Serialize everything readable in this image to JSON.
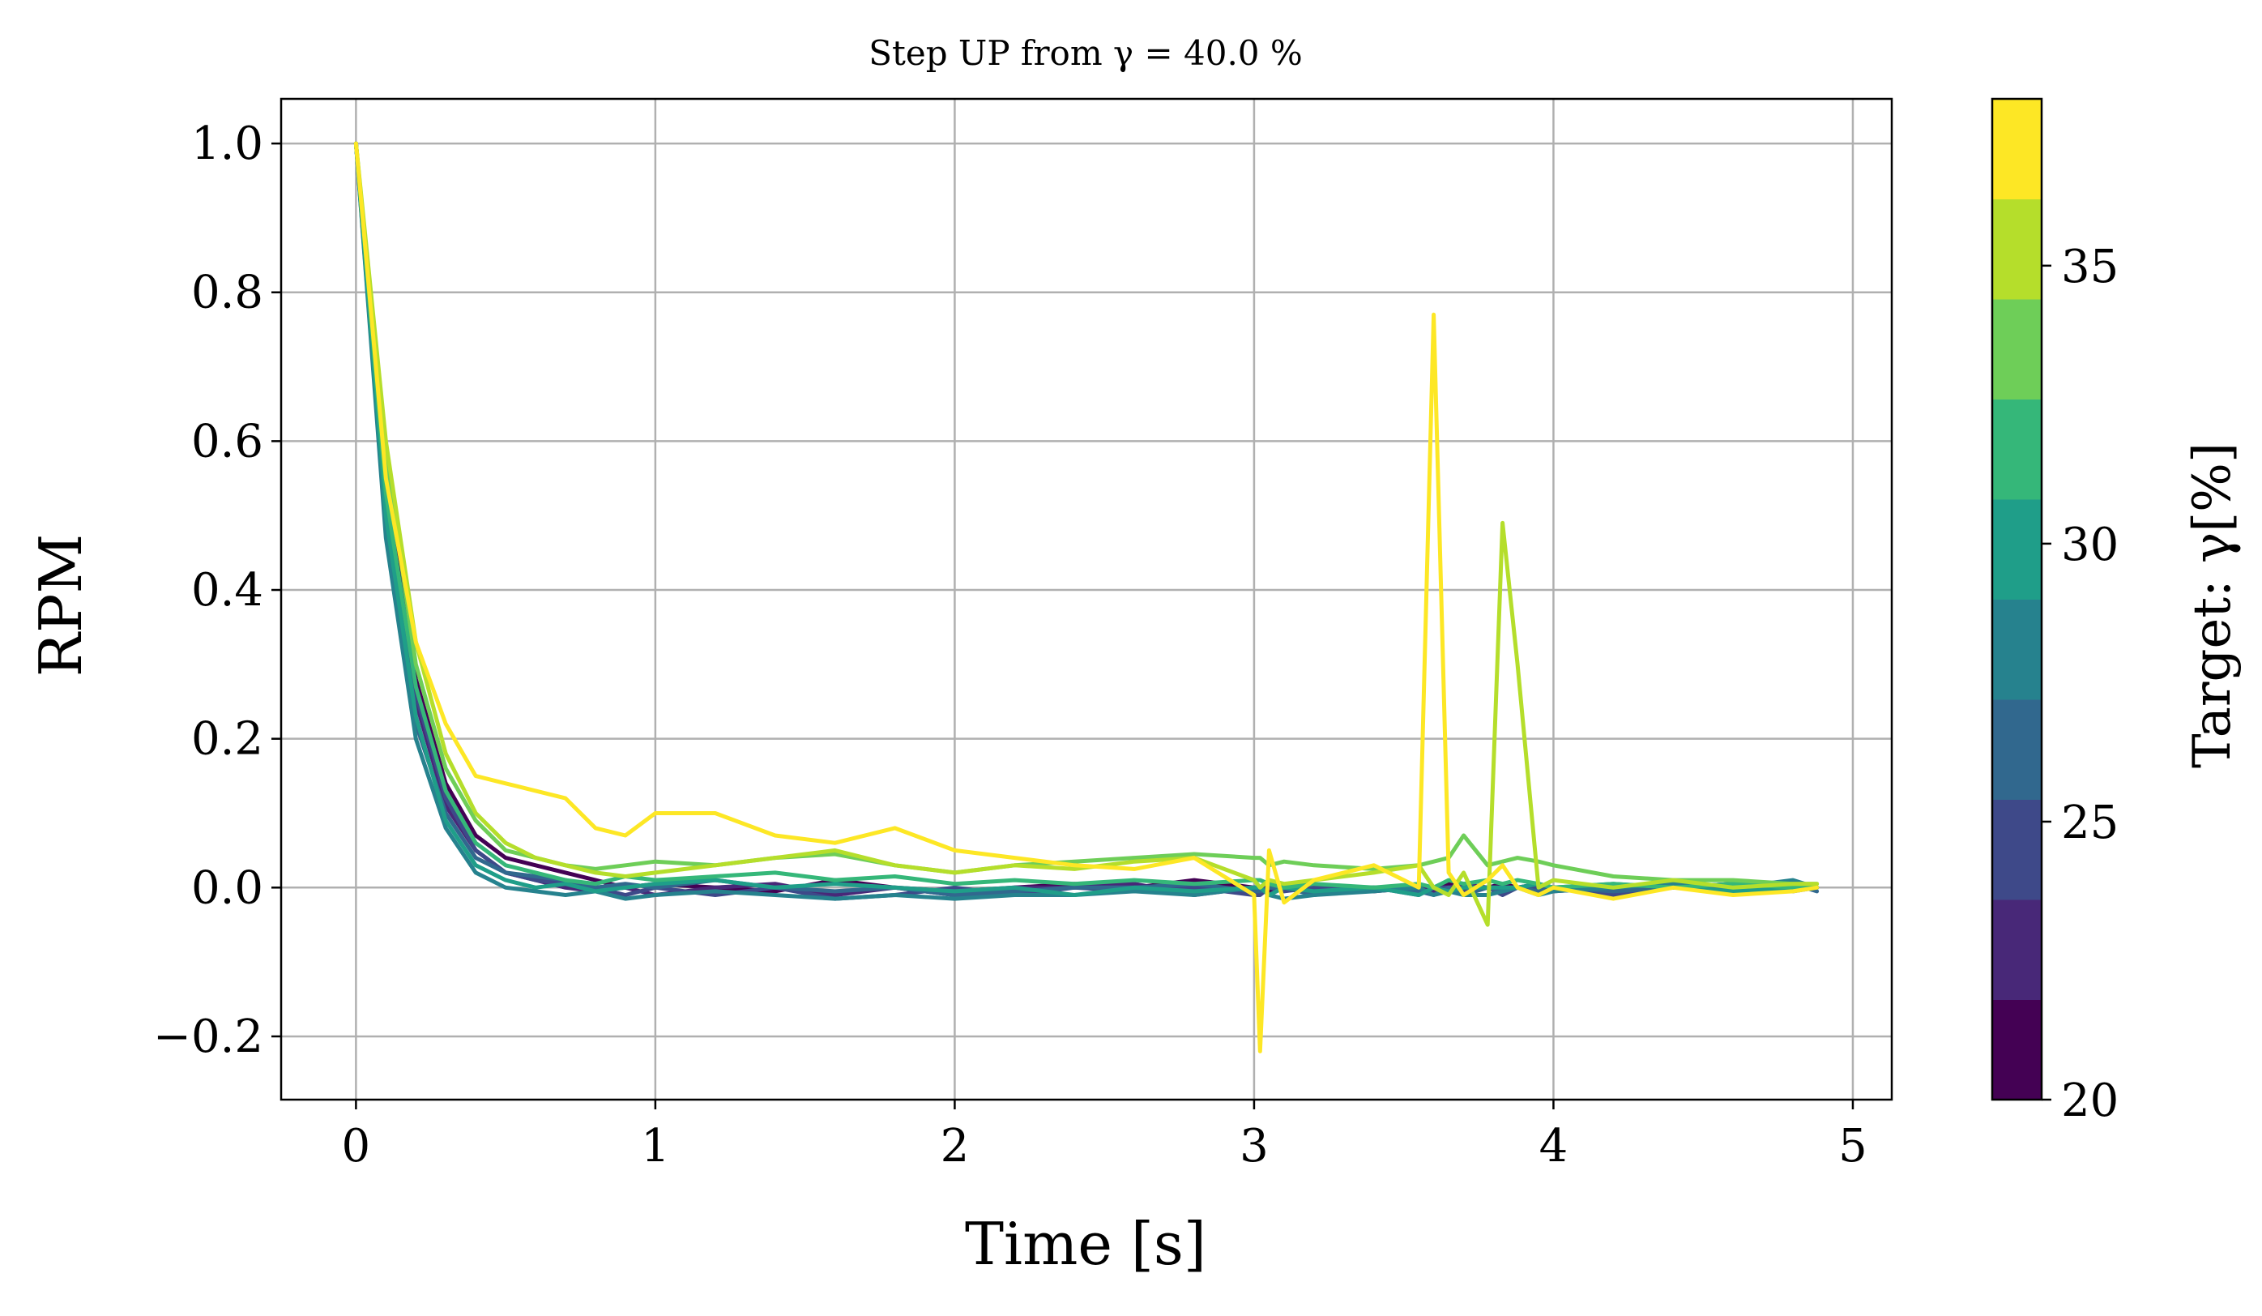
{
  "chart_data": {
    "type": "line",
    "title": "Step UP from γ = 40.0 %",
    "xlabel": "Time [s]",
    "ylabel": "RPM",
    "xlim": [
      -0.25,
      5.13
    ],
    "ylim": [
      -0.285,
      1.06
    ],
    "xticks": [
      0,
      1,
      2,
      3,
      4,
      5
    ],
    "xtick_labels": [
      "0",
      "1",
      "2",
      "3",
      "4",
      "5"
    ],
    "yticks": [
      -0.2,
      0.0,
      0.2,
      0.4,
      0.6,
      0.8,
      1.0
    ],
    "ytick_labels": [
      "−0.2",
      "0.0",
      "0.2",
      "0.4",
      "0.6",
      "0.8",
      "1.0"
    ],
    "grid": true,
    "colorbar": {
      "label": "Target: γ[%]",
      "range": [
        20,
        38
      ],
      "ticks": [
        20,
        25,
        30,
        35
      ],
      "tick_labels": [
        "20",
        "25",
        "30",
        "35"
      ],
      "colors": [
        "#440154",
        "#482878",
        "#3e4989",
        "#31688e",
        "#26828e",
        "#1f9e89",
        "#35b779",
        "#6ece58",
        "#b5de2b",
        "#fde725"
      ]
    },
    "x": [
      0.0,
      0.1,
      0.2,
      0.3,
      0.4,
      0.5,
      0.6,
      0.7,
      0.8,
      0.9,
      1.0,
      1.2,
      1.4,
      1.6,
      1.8,
      2.0,
      2.2,
      2.4,
      2.6,
      2.8,
      3.0,
      3.02,
      3.05,
      3.1,
      3.2,
      3.4,
      3.55,
      3.6,
      3.65,
      3.7,
      3.78,
      3.83,
      3.88,
      3.95,
      4.0,
      4.2,
      4.4,
      4.6,
      4.8,
      4.88
    ],
    "series": [
      {
        "color": "#440154",
        "values": [
          1.0,
          0.55,
          0.28,
          0.14,
          0.07,
          0.04,
          0.03,
          0.02,
          0.01,
          0.0,
          0.005,
          0.0,
          -0.005,
          0.01,
          0.0,
          -0.01,
          0.0,
          0.005,
          0.0,
          0.01,
          0.0,
          0.0,
          -0.005,
          0.0,
          0.0,
          -0.005,
          0.0,
          0.0,
          0.005,
          0.0,
          0.0,
          0.005,
          0.0,
          0.005,
          0.0,
          0.0,
          0.0,
          0.005,
          0.0,
          0.0
        ]
      },
      {
        "color": "#482878",
        "values": [
          1.0,
          0.5,
          0.25,
          0.11,
          0.05,
          0.02,
          0.01,
          0.0,
          -0.005,
          0.0,
          -0.01,
          0.0,
          0.005,
          -0.01,
          0.0,
          -0.005,
          0.0,
          0.0,
          0.005,
          -0.01,
          0.0,
          0.0,
          0.005,
          0.0,
          -0.005,
          0.0,
          0.0,
          -0.005,
          0.0,
          0.005,
          0.0,
          0.0,
          0.0,
          0.0,
          -0.005,
          0.0,
          0.005,
          0.0,
          0.0,
          0.0
        ]
      },
      {
        "color": "#3e4989",
        "values": [
          1.0,
          0.52,
          0.26,
          0.12,
          0.05,
          0.02,
          0.01,
          0.005,
          0.0,
          -0.01,
          0.0,
          -0.01,
          0.0,
          -0.015,
          -0.01,
          0.0,
          -0.01,
          0.0,
          -0.005,
          0.0,
          -0.01,
          -0.01,
          0.0,
          -0.005,
          0.0,
          0.0,
          -0.01,
          0.0,
          0.0,
          -0.005,
          0.0,
          -0.01,
          0.0,
          0.0,
          0.0,
          -0.01,
          0.0,
          0.005,
          -0.005,
          0.0
        ]
      },
      {
        "color": "#31688e",
        "values": [
          1.0,
          0.48,
          0.22,
          0.1,
          0.04,
          0.02,
          0.015,
          0.01,
          0.0,
          0.005,
          0.0,
          0.01,
          0.0,
          -0.005,
          0.0,
          -0.01,
          -0.005,
          0.0,
          0.0,
          0.005,
          -0.005,
          -0.005,
          0.0,
          0.0,
          -0.01,
          0.0,
          -0.005,
          -0.01,
          0.0,
          -0.01,
          0.0,
          -0.005,
          0.0,
          -0.005,
          0.0,
          -0.005,
          0.0,
          0.0,
          0.005,
          -0.005
        ]
      },
      {
        "color": "#26828e",
        "values": [
          1.0,
          0.47,
          0.2,
          0.08,
          0.02,
          0.0,
          -0.005,
          -0.01,
          -0.005,
          -0.015,
          -0.01,
          -0.005,
          -0.01,
          -0.015,
          -0.01,
          -0.015,
          -0.01,
          -0.01,
          -0.005,
          -0.01,
          0.0,
          0.0,
          -0.01,
          -0.015,
          -0.01,
          -0.005,
          0.0,
          -0.01,
          -0.005,
          -0.01,
          -0.01,
          -0.005,
          0.0,
          -0.01,
          -0.005,
          0.0,
          0.005,
          0.0,
          0.01,
          0.0
        ]
      },
      {
        "color": "#1f9e89",
        "values": [
          1.0,
          0.5,
          0.23,
          0.09,
          0.03,
          0.01,
          0.0,
          0.005,
          -0.005,
          0.0,
          0.005,
          0.01,
          0.0,
          0.005,
          0.0,
          -0.005,
          0.0,
          -0.01,
          0.0,
          -0.005,
          0.0,
          0.0,
          -0.01,
          0.0,
          -0.005,
          0.0,
          -0.01,
          0.0,
          -0.005,
          0.0,
          0.0,
          0.0,
          0.0,
          0.005,
          0.0,
          0.005,
          0.0,
          -0.005,
          0.0,
          0.0
        ]
      },
      {
        "color": "#35b779",
        "values": [
          1.0,
          0.53,
          0.27,
          0.13,
          0.06,
          0.03,
          0.02,
          0.01,
          0.005,
          0.015,
          0.01,
          0.015,
          0.02,
          0.01,
          0.015,
          0.005,
          0.01,
          0.005,
          0.01,
          0.005,
          0.01,
          0.01,
          0.005,
          0.0,
          0.005,
          0.0,
          0.005,
          0.0,
          0.01,
          0.005,
          0.01,
          0.005,
          0.01,
          0.005,
          0.0,
          0.005,
          0.0,
          0.005,
          0.0,
          0.0
        ]
      },
      {
        "color": "#6ece58",
        "values": [
          1.0,
          0.58,
          0.3,
          0.16,
          0.09,
          0.05,
          0.04,
          0.03,
          0.025,
          0.03,
          0.035,
          0.03,
          0.04,
          0.045,
          0.03,
          0.02,
          0.03,
          0.035,
          0.04,
          0.045,
          0.04,
          0.04,
          0.03,
          0.035,
          0.03,
          0.025,
          0.03,
          0.035,
          0.04,
          0.07,
          0.03,
          0.035,
          0.04,
          0.035,
          0.03,
          0.015,
          0.01,
          0.01,
          0.005,
          0.005
        ]
      },
      {
        "color": "#b5de2b",
        "values": [
          1.0,
          0.6,
          0.33,
          0.18,
          0.1,
          0.06,
          0.04,
          0.03,
          0.02,
          0.015,
          0.02,
          0.03,
          0.04,
          0.05,
          0.03,
          0.02,
          0.03,
          0.025,
          0.035,
          0.04,
          0.01,
          0.0,
          0.01,
          0.005,
          0.01,
          0.02,
          0.03,
          0.0,
          -0.01,
          0.02,
          -0.05,
          0.49,
          0.3,
          0.0,
          0.01,
          0.0,
          0.01,
          0.0,
          0.005,
          0.005
        ]
      },
      {
        "color": "#fde725",
        "values": [
          1.0,
          0.55,
          0.33,
          0.22,
          0.15,
          0.14,
          0.13,
          0.12,
          0.08,
          0.07,
          0.1,
          0.1,
          0.07,
          0.06,
          0.08,
          0.05,
          0.04,
          0.03,
          0.025,
          0.04,
          -0.01,
          -0.22,
          0.05,
          -0.02,
          0.01,
          0.03,
          0.0,
          0.77,
          0.02,
          -0.01,
          0.01,
          0.03,
          0.0,
          -0.01,
          0.0,
          -0.015,
          0.0,
          -0.01,
          -0.005,
          0.0
        ]
      }
    ]
  }
}
